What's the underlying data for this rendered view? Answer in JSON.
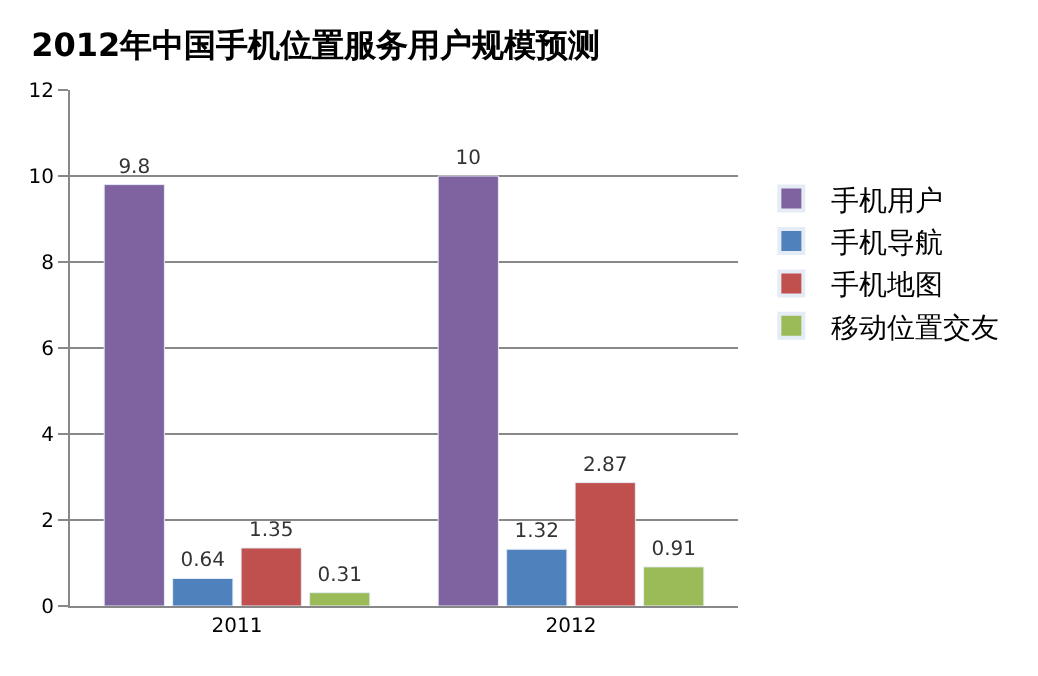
{
  "chart_data": {
    "type": "bar",
    "title": "2012年中国手机位置服务用户规模预测",
    "categories": [
      "2011",
      "2012"
    ],
    "series": [
      {
        "name": "手机用户",
        "color": "#7f63a0",
        "values": [
          9.8,
          10
        ]
      },
      {
        "name": "手机导航",
        "color": "#4f81bd",
        "values": [
          0.64,
          1.32
        ]
      },
      {
        "name": "手机地图",
        "color": "#c0504d",
        "values": [
          1.35,
          2.87
        ]
      },
      {
        "name": "移动位置交友",
        "color": "#9bbb59",
        "values": [
          0.31,
          0.91
        ]
      }
    ],
    "ylim": [
      0,
      12
    ],
    "yticks": [
      0,
      2,
      4,
      6,
      8,
      10,
      12
    ],
    "grid": "y",
    "legend": "right",
    "data_labels": true
  }
}
